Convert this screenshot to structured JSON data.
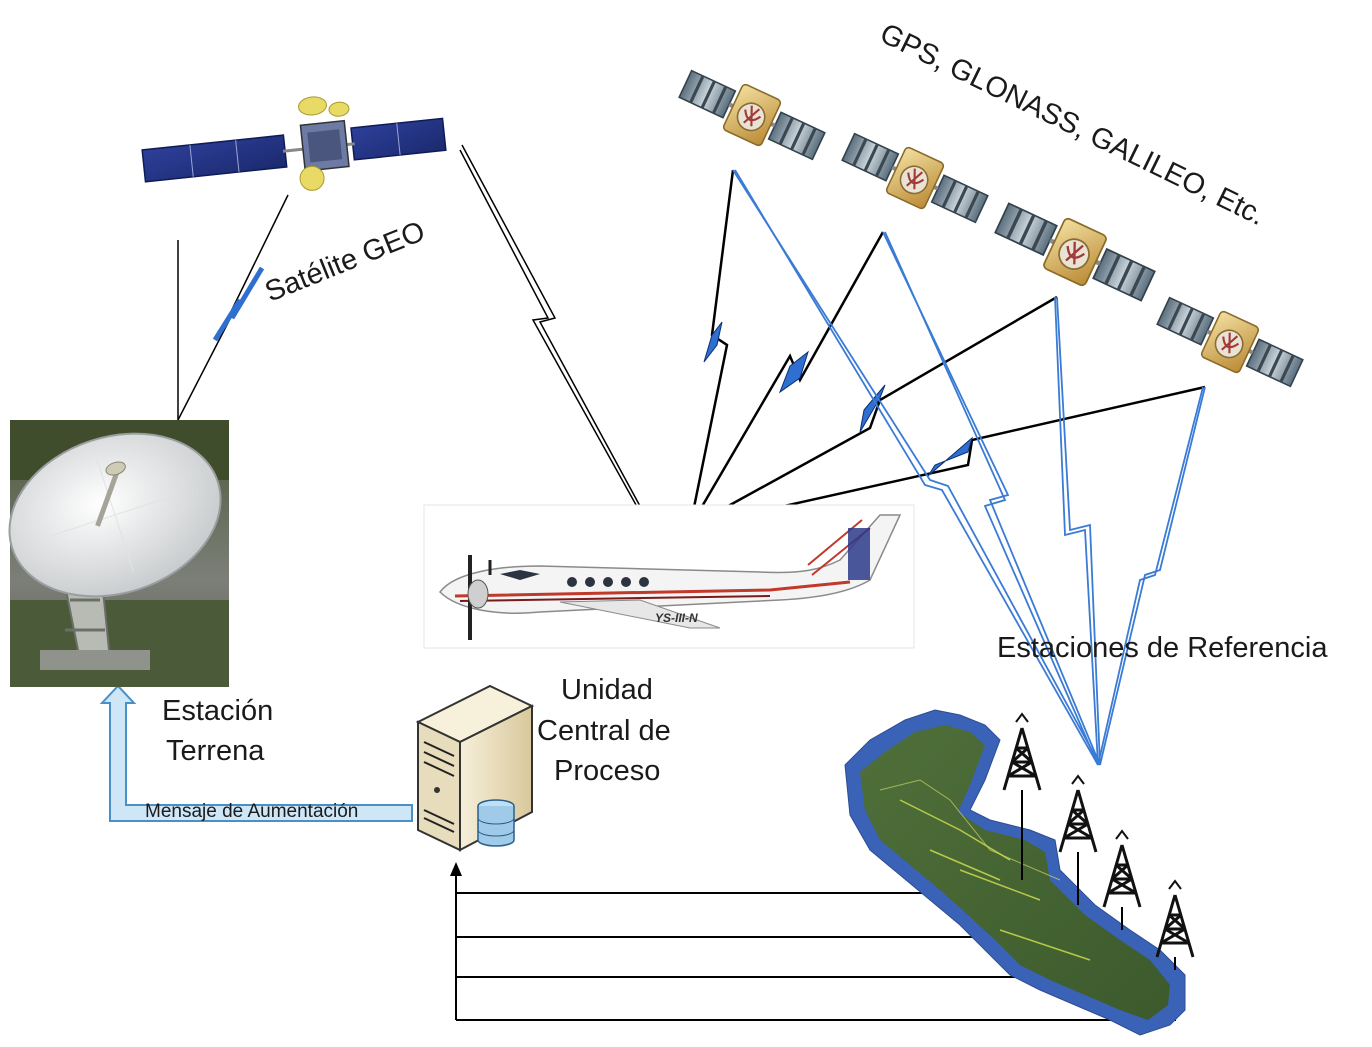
{
  "labels": {
    "gnss_constellations": "GPS, GLONASS, GALILEO, Etc.",
    "geo_satellite": "Satélite GEO",
    "ground_station_line1": "Estación",
    "ground_station_line2": "Terrena",
    "central_unit_line1": "Unidad",
    "central_unit_line2": "Central de",
    "central_unit_line3": "Proceso",
    "reference_stations": "Estaciones de Referencia",
    "augmentation_message": "Mensaje de Aumentación"
  },
  "aircraft": {
    "registration": "YS-III-N"
  },
  "icons": {
    "geo_satellite": "geo-satellite-icon",
    "gnss_satellite": "gnss-satellite-icon",
    "ground_station": "satellite-dish-icon",
    "aircraft": "aircraft-icon",
    "server": "server-database-icon",
    "map": "central-america-map-icon",
    "tower": "radio-tower-icon"
  },
  "colors": {
    "link_black": "#000000",
    "link_blue": "#3a7bd5",
    "zigzag_fill": "#2f6fd0",
    "arrow_fill": "#cfe6f7",
    "arrow_stroke": "#4a90c8"
  }
}
